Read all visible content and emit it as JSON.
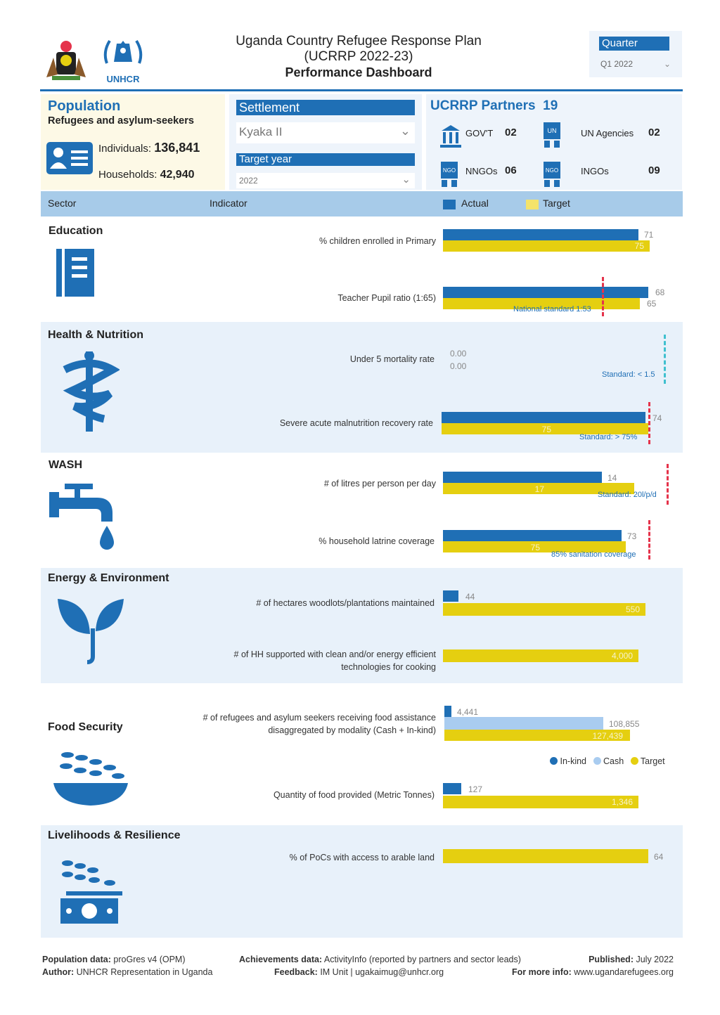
{
  "header": {
    "title_line1": "Uganda Country Refugee Response Plan",
    "title_line2": "(UCRRP 2022-23)",
    "title_line3": "Performance Dashboard",
    "unhcr_logo_text": "UNHCR",
    "quarter_label": "Quarter",
    "quarter_value": "Q1 2022"
  },
  "population": {
    "title": "Population",
    "subtitle": "Refugees and asylum-seekers",
    "individuals_label": "Individuals:",
    "individuals_value": "136,841",
    "households_label": "Households:",
    "households_value": "42,940"
  },
  "filters": {
    "settlement_label": "Settlement",
    "settlement_value": "Kyaka II",
    "target_year_label": "Target year",
    "target_year_value": "2022"
  },
  "partners": {
    "title": "UCRRP Partners",
    "total": "19",
    "govt_label": "GOV'T",
    "govt_value": "02",
    "un_label": "UN Agencies",
    "un_value": "02",
    "nngo_label": "NNGOs",
    "nngo_value": "06",
    "ingo_label": "INGOs",
    "ingo_value": "09"
  },
  "table_header": {
    "sector": "Sector",
    "indicator": "Indicator",
    "actual": "Actual",
    "target": "Target"
  },
  "colors": {
    "actual": "#1f6fb5",
    "target": "#e5cf10",
    "cash": "#a9ccf0",
    "standard_red": "#e5334b",
    "standard_teal": "#3fc0cf"
  },
  "chart_data": [
    {
      "type": "bar",
      "sector": "Education",
      "indicator": "% children enrolled in Primary",
      "actual": 71,
      "target": 75
    },
    {
      "type": "bar",
      "sector": "Education",
      "indicator": "Teacher Pupil ratio (1:65)",
      "actual": 68,
      "target": 65,
      "standard_label": "National standard 1:53"
    },
    {
      "type": "bar",
      "sector": "Health & Nutrition",
      "indicator": "Under 5 mortality rate",
      "actual": 0.0,
      "target": 0.0,
      "actual_label": "0.00",
      "target_label": "0.00",
      "standard_label": "Standard: < 1.5"
    },
    {
      "type": "bar",
      "sector": "Health & Nutrition",
      "indicator": "Severe acute malnutrition recovery rate",
      "actual": 74,
      "target": 75,
      "standard_label": "Standard: > 75%"
    },
    {
      "type": "bar",
      "sector": "WASH",
      "indicator": "# of litres per person per day",
      "actual": 14,
      "target": 17,
      "standard_label": "Standard: 20l/p/d"
    },
    {
      "type": "bar",
      "sector": "WASH",
      "indicator": "% household latrine coverage",
      "actual": 73,
      "target": 75,
      "standard_label": "85% sanitation coverage"
    },
    {
      "type": "bar",
      "sector": "Energy & Environment",
      "indicator": "# of hectares woodlots/plantations maintained",
      "actual": 44,
      "target": 550
    },
    {
      "type": "bar",
      "sector": "Energy & Environment",
      "indicator": "# of HH supported with clean and/or energy efficient technologies for cooking",
      "target": 4000,
      "target_label": "4,000"
    },
    {
      "type": "bar",
      "sector": "Food Security",
      "indicator": "# of refugees and asylum seekers receiving food assistance disaggregated by modality (Cash + In-kind)",
      "inkind": 4441,
      "cash": 108855,
      "target": 127439,
      "inkind_label": "4,441",
      "cash_label": "108,855",
      "target_label": "127,439",
      "legend": [
        "In-kind",
        "Cash",
        "Target"
      ]
    },
    {
      "type": "bar",
      "sector": "Food Security",
      "indicator": "Quantity of food provided (Metric Tonnes)",
      "actual": 127,
      "target": 1346,
      "target_label": "1,346"
    },
    {
      "type": "bar",
      "sector": "Livelihoods & Resilience",
      "indicator": "% of PoCs with access to arable land",
      "target": 64
    }
  ],
  "sectors": {
    "education": "Education",
    "health": "Health & Nutrition",
    "wash": "WASH",
    "energy": "Energy & Environment",
    "food": "Food Security",
    "livelihoods": "Livelihoods & Resilience"
  },
  "indicators": {
    "i1": "% children enrolled in Primary",
    "i2": "Teacher Pupil ratio (1:65)",
    "i3": "Under 5 mortality rate",
    "i4": "Severe acute malnutrition recovery rate",
    "i5": "# of litres per person per day",
    "i6": "% household latrine coverage",
    "i7": "# of hectares woodlots/plantations maintained",
    "i8a": "# of HH supported with clean and/or energy efficient",
    "i8b": "technologies for cooking",
    "i9a": "# of refugees and asylum seekers receiving food assistance",
    "i9b": "disaggregated by modality (Cash + In-kind)",
    "i10": "Quantity of food provided (Metric Tonnes)",
    "i11": "% of PoCs with access to arable land"
  },
  "values": {
    "v1a": "71",
    "v1t": "75",
    "v2a": "68",
    "v2t": "65",
    "s2": "National standard 1:53",
    "v3a": "0.00",
    "v3t": "0.00",
    "s3": "Standard: < 1.5",
    "v4a": "74",
    "v4t": "75",
    "s4": "Standard: > 75%",
    "v5a": "14",
    "v5t": "17",
    "s5": "Standard: 20l/p/d",
    "v6a": "73",
    "v6t": "75",
    "s6": "85% sanitation coverage",
    "v7a": "44",
    "v7t": "550",
    "v8t": "4,000",
    "v9i": "4,441",
    "v9c": "108,855",
    "v9t": "127,439",
    "v10a": "127",
    "v10t": "1,346",
    "v11t": "64"
  },
  "legend": {
    "inkind": "In-kind",
    "cash": "Cash",
    "target": "Target"
  },
  "footer": {
    "pop_label": "Population data:",
    "pop_value": "proGres v4 (OPM)",
    "author_label": "Author:",
    "author_value": "UNHCR Representation in Uganda",
    "ach_label": "Achievements data:",
    "ach_value": "ActivityInfo (reported by partners and sector leads)",
    "feedback_label": "Feedback:",
    "feedback_value": "IM Unit | ugakaimug@unhcr.org",
    "published_label": "Published:",
    "published_value": "July 2022",
    "info_label": "For more info:",
    "info_value": "www.ugandarefugees.org"
  }
}
